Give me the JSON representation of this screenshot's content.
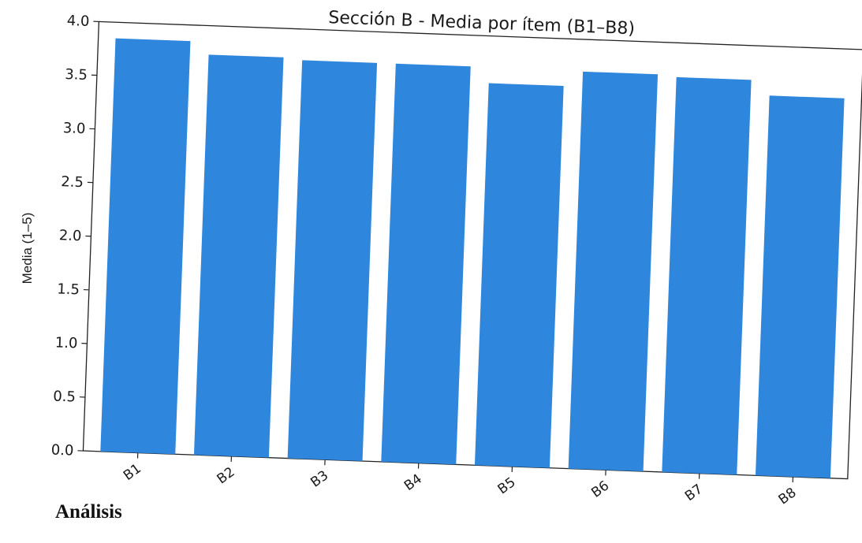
{
  "chart_data": {
    "type": "bar",
    "title": "Sección B - Media por ítem (B1–B8)",
    "xlabel": "",
    "ylabel": "Media (1–5)",
    "categories": [
      "B1",
      "B2",
      "B3",
      "B4",
      "B5",
      "B6",
      "B7",
      "B8"
    ],
    "values": [
      3.85,
      3.73,
      3.71,
      3.71,
      3.56,
      3.7,
      3.68,
      3.54
    ],
    "ylim": [
      0,
      4.0
    ],
    "yticks": [
      "0.0",
      "0.5",
      "1.0",
      "1.5",
      "2.0",
      "2.5",
      "3.0",
      "3.5",
      "4.0"
    ],
    "bar_color": "#2f86dd",
    "grid": false,
    "legend": "none"
  },
  "section_heading": "Análisis"
}
